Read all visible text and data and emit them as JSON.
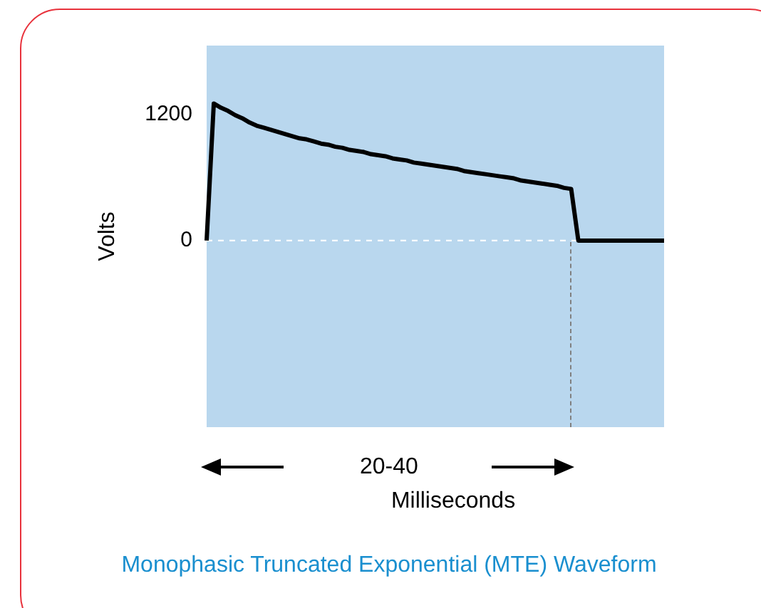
{
  "chart_data": {
    "type": "line",
    "title": "Monophasic Truncated Exponential (MTE) Waveform",
    "xlabel": "Milliseconds",
    "ylabel": "Volts",
    "annotations": [
      "20-40"
    ],
    "categories": [
      null,
      null,
      null,
      null,
      null,
      null,
      null,
      null,
      null,
      null,
      null,
      null,
      null,
      null,
      null,
      null,
      null,
      null,
      null,
      null,
      null,
      null,
      null,
      null,
      null,
      null,
      null,
      null,
      null,
      null,
      null,
      null,
      null,
      null,
      null,
      null,
      null,
      null,
      null,
      null,
      null,
      null,
      null,
      null,
      null,
      null,
      null,
      null,
      null,
      null,
      null,
      null,
      null,
      null,
      null,
      null,
      null,
      null,
      null,
      null,
      null,
      null,
      null,
      null,
      null
    ],
    "series": [
      {
        "color": "#000000",
        "values": [
          0,
          1300,
          1260,
          1230,
          1190,
          1160,
          1120,
          1090,
          1070,
          1050,
          1030,
          1010,
          990,
          970,
          960,
          940,
          920,
          910,
          890,
          880,
          860,
          850,
          840,
          820,
          810,
          800,
          780,
          770,
          760,
          740,
          730,
          720,
          710,
          700,
          690,
          680,
          660,
          650,
          640,
          630,
          620,
          610,
          600,
          590,
          570,
          560,
          550,
          540,
          530,
          520,
          500,
          490,
          0,
          0,
          0,
          0,
          0,
          0,
          0,
          0,
          0,
          0,
          0,
          0,
          0
        ]
      }
    ],
    "ylim": [
      -1770,
      1850
    ],
    "yticks": [
      0,
      1200
    ],
    "grid": false,
    "legend": false,
    "tick_labels": "y",
    "marker": "none",
    "line_style": "solid",
    "ref_lines": [
      {
        "axis": "y",
        "value": 0,
        "color": "#ffffff",
        "line_style": "dashed"
      }
    ]
  }
}
